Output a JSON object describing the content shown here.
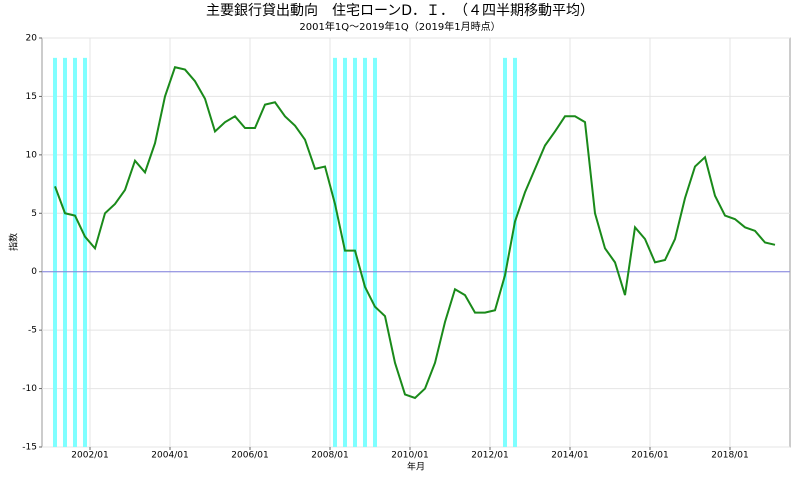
{
  "chart_data": {
    "type": "line",
    "title": "主要銀行貸出動向　住宅ローンD．Ｉ．　（４四半期移動平均）",
    "subtitle": "2001年1Q～2019年1Q（2019年1月時点）",
    "x_label": "年月",
    "y_label": "指数",
    "x": [
      2001.125,
      2001.375,
      2001.625,
      2001.875,
      2002.125,
      2002.375,
      2002.625,
      2002.875,
      2003.125,
      2003.375,
      2003.625,
      2003.875,
      2004.125,
      2004.375,
      2004.625,
      2004.875,
      2005.125,
      2005.375,
      2005.625,
      2005.875,
      2006.125,
      2006.375,
      2006.625,
      2006.875,
      2007.125,
      2007.375,
      2007.625,
      2007.875,
      2008.125,
      2008.375,
      2008.625,
      2008.875,
      2009.125,
      2009.375,
      2009.625,
      2009.875,
      2010.125,
      2010.375,
      2010.625,
      2010.875,
      2011.125,
      2011.375,
      2011.625,
      2011.875,
      2012.125,
      2012.375,
      2012.625,
      2012.875,
      2013.125,
      2013.375,
      2013.625,
      2013.875,
      2014.125,
      2014.375,
      2014.625,
      2014.875,
      2015.125,
      2015.375,
      2015.625,
      2015.875,
      2016.125,
      2016.375,
      2016.625,
      2016.875,
      2017.125,
      2017.375,
      2017.625,
      2017.875,
      2018.125,
      2018.375,
      2018.625,
      2018.875,
      2019.125
    ],
    "series": [
      {
        "color": "#1a8a1a",
        "values": [
          7.3,
          5.0,
          4.8,
          3.0,
          2.0,
          5.0,
          5.8,
          7.0,
          9.5,
          8.5,
          11.0,
          15.0,
          17.5,
          17.3,
          16.3,
          14.8,
          12.0,
          12.8,
          13.3,
          12.3,
          12.3,
          14.3,
          14.5,
          13.3,
          12.5,
          11.3,
          8.8,
          9.0,
          5.8,
          1.8,
          1.8,
          -1.3,
          -3.0,
          -3.8,
          -7.8,
          -10.5,
          -10.8,
          -10.0,
          -7.8,
          -4.3,
          -1.5,
          -2.0,
          -3.5,
          -3.5,
          -3.3,
          -0.3,
          4.3,
          6.8,
          8.8,
          10.8,
          12.0,
          13.3,
          13.3,
          12.8,
          5.0,
          2.0,
          0.8,
          -2.0,
          3.8,
          2.8,
          0.8,
          1.0,
          2.8,
          6.3,
          9.0,
          9.8,
          6.5,
          4.8,
          4.5,
          3.8,
          3.5,
          2.5,
          2.3
        ]
      }
    ],
    "shaded_bars": {
      "color": "#80ffff",
      "top": 18.3,
      "x": [
        2001.125,
        2001.375,
        2001.625,
        2001.875,
        2008.125,
        2008.375,
        2008.625,
        2008.875,
        2009.125,
        2012.375,
        2012.625
      ]
    },
    "zero_line_color": "#8080e0",
    "xlim": [
      2000.8,
      2019.5
    ],
    "xticks": [
      {
        "value": 2002,
        "label": "2002/01"
      },
      {
        "value": 2004,
        "label": "2004/01"
      },
      {
        "value": 2006,
        "label": "2006/01"
      },
      {
        "value": 2008,
        "label": "2008/01"
      },
      {
        "value": 2010,
        "label": "2010/01"
      },
      {
        "value": 2012,
        "label": "2012/01"
      },
      {
        "value": 2014,
        "label": "2014/01"
      },
      {
        "value": 2016,
        "label": "2016/01"
      },
      {
        "value": 2018,
        "label": "2018/01"
      }
    ],
    "ylim": [
      -15,
      20
    ],
    "yticks": [
      -15,
      -10,
      -5,
      0,
      5,
      10,
      15,
      20
    ],
    "grid": true
  }
}
